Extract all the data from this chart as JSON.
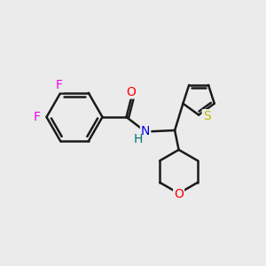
{
  "bg_color": "#ebebeb",
  "bond_color": "#1a1a1a",
  "bond_width": 1.8,
  "atom_colors": {
    "F": "#ee00ee",
    "O_carbonyl": "#ff0000",
    "N": "#0000ee",
    "H": "#007070",
    "S": "#bbbb00",
    "O_ring": "#ff0000"
  },
  "font_size": 10,
  "fig_size": [
    3.0,
    3.0
  ],
  "dpi": 100
}
